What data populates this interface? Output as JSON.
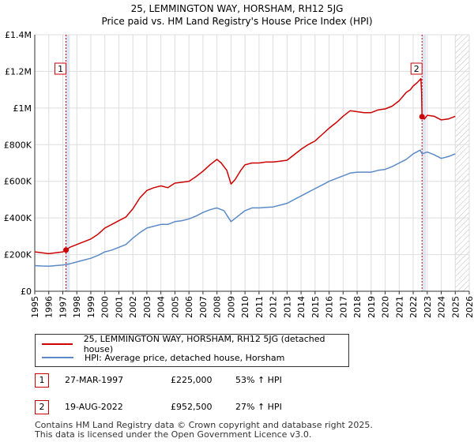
{
  "title_line1": "25, LEMMINGTON WAY, HORSHAM, RH12 5JG",
  "title_line2": "Price paid vs. HM Land Registry's House Price Index (HPI)",
  "chart_data": {
    "type": "line",
    "xlabel": "",
    "ylabel": "",
    "xlim": [
      1995,
      2026
    ],
    "ylim": [
      0,
      1400000
    ],
    "x_ticks": [
      "1995",
      "1996",
      "1997",
      "1998",
      "1999",
      "2000",
      "2001",
      "2002",
      "2003",
      "2004",
      "2005",
      "2006",
      "2007",
      "2008",
      "2009",
      "2010",
      "2011",
      "2012",
      "2013",
      "2014",
      "2015",
      "2016",
      "2017",
      "2018",
      "2019",
      "2020",
      "2021",
      "2022",
      "2023",
      "2024",
      "2025",
      "2026"
    ],
    "y_ticks": [
      {
        "value": 0,
        "label": "£0"
      },
      {
        "value": 200000,
        "label": "£200K"
      },
      {
        "value": 400000,
        "label": "£400K"
      },
      {
        "value": 600000,
        "label": "£600K"
      },
      {
        "value": 800000,
        "label": "£800K"
      },
      {
        "value": 1000000,
        "label": "£1M"
      },
      {
        "value": 1200000,
        "label": "£1.2M"
      },
      {
        "value": 1400000,
        "label": "£1.4M"
      }
    ],
    "grid": true,
    "shaded_regions": [
      {
        "from": 1997.23,
        "to": 1997.5
      },
      {
        "from": 2022.63,
        "to": 2022.9
      }
    ],
    "hatched_region": {
      "from": 2025.0,
      "to": 2026.0
    },
    "markers": [
      {
        "label": "1",
        "x": 1997.23,
        "y": 225000
      },
      {
        "label": "2",
        "x": 2022.63,
        "y": 952500
      }
    ],
    "series": [
      {
        "name": "25, LEMMINGTON WAY, HORSHAM, RH12 5JG (detached house)",
        "color": "#cc0000",
        "points": [
          [
            1995.0,
            215000
          ],
          [
            1995.5,
            210000
          ],
          [
            1996.0,
            205000
          ],
          [
            1996.5,
            210000
          ],
          [
            1997.0,
            215000
          ],
          [
            1997.23,
            225000
          ],
          [
            1997.5,
            240000
          ],
          [
            1998.0,
            255000
          ],
          [
            1998.5,
            270000
          ],
          [
            1999.0,
            285000
          ],
          [
            1999.5,
            310000
          ],
          [
            2000.0,
            345000
          ],
          [
            2000.5,
            365000
          ],
          [
            2001.0,
            385000
          ],
          [
            2001.5,
            405000
          ],
          [
            2002.0,
            450000
          ],
          [
            2002.5,
            510000
          ],
          [
            2003.0,
            550000
          ],
          [
            2003.5,
            565000
          ],
          [
            2004.0,
            575000
          ],
          [
            2004.5,
            565000
          ],
          [
            2005.0,
            590000
          ],
          [
            2005.5,
            595000
          ],
          [
            2006.0,
            600000
          ],
          [
            2006.5,
            625000
          ],
          [
            2007.0,
            655000
          ],
          [
            2007.5,
            690000
          ],
          [
            2008.0,
            720000
          ],
          [
            2008.3,
            700000
          ],
          [
            2008.7,
            660000
          ],
          [
            2009.0,
            585000
          ],
          [
            2009.3,
            610000
          ],
          [
            2009.7,
            660000
          ],
          [
            2010.0,
            690000
          ],
          [
            2010.5,
            700000
          ],
          [
            2011.0,
            700000
          ],
          [
            2011.5,
            705000
          ],
          [
            2012.0,
            705000
          ],
          [
            2012.5,
            710000
          ],
          [
            2013.0,
            715000
          ],
          [
            2013.5,
            745000
          ],
          [
            2014.0,
            775000
          ],
          [
            2014.5,
            800000
          ],
          [
            2015.0,
            820000
          ],
          [
            2015.5,
            855000
          ],
          [
            2016.0,
            890000
          ],
          [
            2016.5,
            920000
          ],
          [
            2017.0,
            955000
          ],
          [
            2017.5,
            985000
          ],
          [
            2018.0,
            980000
          ],
          [
            2018.5,
            975000
          ],
          [
            2019.0,
            975000
          ],
          [
            2019.5,
            990000
          ],
          [
            2020.0,
            995000
          ],
          [
            2020.5,
            1010000
          ],
          [
            2021.0,
            1040000
          ],
          [
            2021.5,
            1085000
          ],
          [
            2021.8,
            1100000
          ],
          [
            2022.0,
            1120000
          ],
          [
            2022.3,
            1140000
          ],
          [
            2022.55,
            1160000
          ],
          [
            2022.6,
            1080000
          ],
          [
            2022.63,
            952500
          ],
          [
            2022.8,
            940000
          ],
          [
            2023.0,
            960000
          ],
          [
            2023.5,
            955000
          ],
          [
            2024.0,
            935000
          ],
          [
            2024.5,
            940000
          ],
          [
            2025.0,
            955000
          ]
        ]
      },
      {
        "name": "HPI: Average price, detached house, Horsham",
        "color": "#5b8ac7",
        "points": [
          [
            1995.0,
            140000
          ],
          [
            1995.5,
            138000
          ],
          [
            1996.0,
            137000
          ],
          [
            1996.5,
            140000
          ],
          [
            1997.0,
            143000
          ],
          [
            1997.5,
            150000
          ],
          [
            1998.0,
            160000
          ],
          [
            1998.5,
            170000
          ],
          [
            1999.0,
            180000
          ],
          [
            1999.5,
            195000
          ],
          [
            2000.0,
            215000
          ],
          [
            2000.5,
            225000
          ],
          [
            2001.0,
            240000
          ],
          [
            2001.5,
            255000
          ],
          [
            2002.0,
            290000
          ],
          [
            2002.5,
            320000
          ],
          [
            2003.0,
            345000
          ],
          [
            2003.5,
            355000
          ],
          [
            2004.0,
            365000
          ],
          [
            2004.5,
            365000
          ],
          [
            2005.0,
            380000
          ],
          [
            2005.5,
            385000
          ],
          [
            2006.0,
            395000
          ],
          [
            2006.5,
            410000
          ],
          [
            2007.0,
            430000
          ],
          [
            2007.5,
            445000
          ],
          [
            2008.0,
            455000
          ],
          [
            2008.5,
            440000
          ],
          [
            2009.0,
            380000
          ],
          [
            2009.5,
            410000
          ],
          [
            2010.0,
            440000
          ],
          [
            2010.5,
            455000
          ],
          [
            2011.0,
            455000
          ],
          [
            2011.5,
            458000
          ],
          [
            2012.0,
            460000
          ],
          [
            2012.5,
            470000
          ],
          [
            2013.0,
            480000
          ],
          [
            2013.5,
            500000
          ],
          [
            2014.0,
            520000
          ],
          [
            2014.5,
            540000
          ],
          [
            2015.0,
            560000
          ],
          [
            2015.5,
            580000
          ],
          [
            2016.0,
            600000
          ],
          [
            2016.5,
            615000
          ],
          [
            2017.0,
            630000
          ],
          [
            2017.5,
            645000
          ],
          [
            2018.0,
            650000
          ],
          [
            2018.5,
            650000
          ],
          [
            2019.0,
            650000
          ],
          [
            2019.5,
            660000
          ],
          [
            2020.0,
            665000
          ],
          [
            2020.5,
            680000
          ],
          [
            2021.0,
            700000
          ],
          [
            2021.5,
            720000
          ],
          [
            2022.0,
            750000
          ],
          [
            2022.5,
            770000
          ],
          [
            2022.63,
            750000
          ],
          [
            2023.0,
            760000
          ],
          [
            2023.5,
            745000
          ],
          [
            2024.0,
            725000
          ],
          [
            2024.5,
            735000
          ],
          [
            2025.0,
            750000
          ]
        ]
      }
    ]
  },
  "legend": {
    "property_label": "25, LEMMINGTON WAY, HORSHAM, RH12 5JG (detached house)",
    "hpi_label": "HPI: Average price, detached house, Horsham",
    "property_color": "#cc0000",
    "hpi_color": "#5b8ac7"
  },
  "sales": [
    {
      "badge": "1",
      "date": "27-MAR-1997",
      "price": "£225,000",
      "pct": "53% ↑ HPI"
    },
    {
      "badge": "2",
      "date": "19-AUG-2022",
      "price": "£952,500",
      "pct": "27% ↑ HPI"
    }
  ],
  "footer": {
    "line1": "Contains HM Land Registry data © Crown copyright and database right 2025.",
    "line2": "This data is licensed under the Open Government Licence v3.0."
  }
}
